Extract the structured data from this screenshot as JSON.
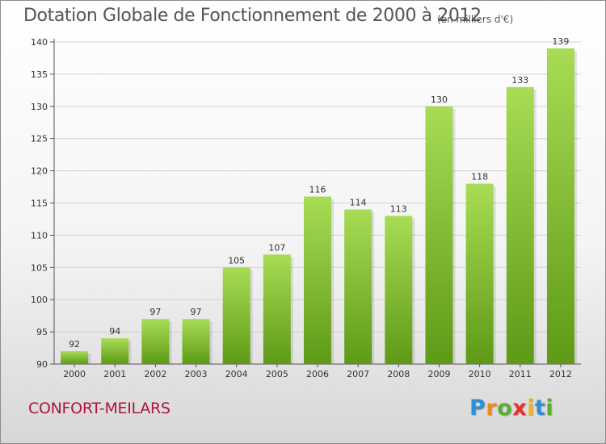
{
  "chart_data": {
    "type": "bar",
    "title": "Dotation Globale de Fonctionnement de 2000 à 2012",
    "subtitle": "(en milliers d'€)",
    "categories": [
      "2000",
      "2001",
      "2002",
      "2003",
      "2004",
      "2005",
      "2006",
      "2007",
      "2008",
      "2009",
      "2010",
      "2011",
      "2012"
    ],
    "values": [
      92,
      94,
      97,
      97,
      105,
      107,
      116,
      114,
      113,
      130,
      118,
      133,
      139
    ],
    "ylim": [
      90,
      140
    ],
    "yticks": [
      90,
      95,
      100,
      105,
      110,
      115,
      120,
      125,
      130,
      135,
      140
    ],
    "xlabel": "",
    "ylabel": "",
    "grid": true,
    "bar_color": "#7ab82e"
  },
  "commune": "CONFORT-MEILARS",
  "logo": {
    "letters": [
      "P",
      "r",
      "o",
      "x",
      "i",
      "t",
      "i"
    ],
    "colors": [
      "#2e8fd8",
      "#f08a1a",
      "#58b02c",
      "#e8322e",
      "#f0b41a",
      "#2e8fd8",
      "#58b02c"
    ]
  }
}
